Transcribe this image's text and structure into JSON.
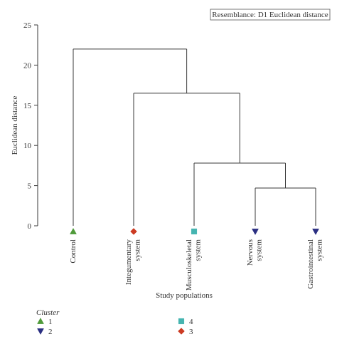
{
  "chart_data": {
    "type": "dendrogram",
    "annotation": "Resemblance: D1 Euclidean distance",
    "xlabel": "Study populations",
    "ylabel": "Euclidean distance",
    "ylim": [
      0,
      25
    ],
    "yticks": [
      0,
      5,
      10,
      15,
      20,
      25
    ],
    "leaves": [
      {
        "label": "Control",
        "cluster": "1"
      },
      {
        "label": "Integumentary system",
        "cluster": "3"
      },
      {
        "label": "Musculoskeletal system",
        "cluster": "4"
      },
      {
        "label": "Nervous system",
        "cluster": "2"
      },
      {
        "label": "Gastrointestinal system",
        "cluster": "2"
      }
    ],
    "merges": [
      {
        "left": 3,
        "right": 4,
        "height": 4.7
      },
      {
        "left": 2,
        "right": "m0",
        "height": 7.8
      },
      {
        "left": 1,
        "right": "m1",
        "height": 16.5
      },
      {
        "left": 0,
        "right": "m2",
        "height": 22.0
      }
    ],
    "legend": {
      "title": "Cluster",
      "items": [
        {
          "label": "1",
          "shape": "triangle-up",
          "color": "#4f9a3a"
        },
        {
          "label": "2",
          "shape": "triangle-down",
          "color": "#2b2f82"
        },
        {
          "label": "4",
          "shape": "square",
          "color": "#45b4b0"
        },
        {
          "label": "3",
          "shape": "diamond",
          "color": "#cc3b23"
        }
      ]
    },
    "line_color": "#3a3a3a"
  }
}
